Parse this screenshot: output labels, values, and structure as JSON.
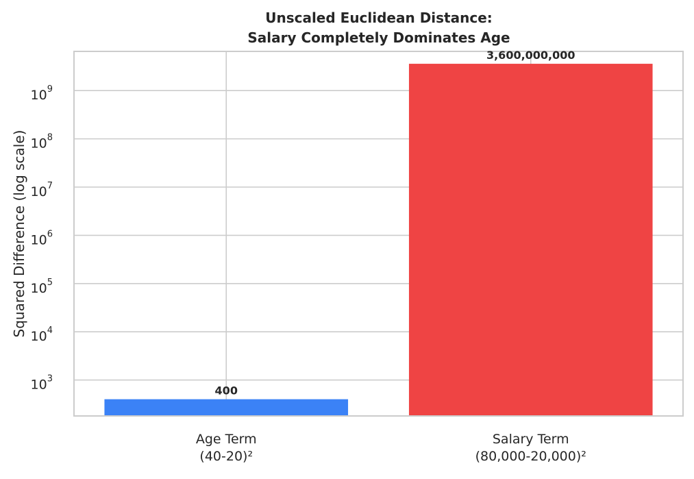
{
  "chart_data": {
    "type": "bar",
    "title": [
      "Unscaled Euclidean Distance:",
      "Salary Completely Dominates Age"
    ],
    "xlabel": "",
    "ylabel": "Squared Difference (log scale)",
    "yscale": "log",
    "ylim": [
      180,
      6500000000
    ],
    "yticks": [
      {
        "base": "10",
        "exp": "3",
        "value": 1000
      },
      {
        "base": "10",
        "exp": "4",
        "value": 10000
      },
      {
        "base": "10",
        "exp": "5",
        "value": 100000
      },
      {
        "base": "10",
        "exp": "6",
        "value": 1000000
      },
      {
        "base": "10",
        "exp": "7",
        "value": 10000000
      },
      {
        "base": "10",
        "exp": "8",
        "value": 100000000
      },
      {
        "base": "10",
        "exp": "9",
        "value": 1000000000
      }
    ],
    "categories": [
      [
        "Age Term",
        "(40-20)²"
      ],
      [
        "Salary Term",
        "(80,000-20,000)²"
      ]
    ],
    "values": [
      400,
      3600000000
    ],
    "data_labels": [
      "400",
      "3,600,000,000"
    ],
    "colors": [
      "#3b82f6",
      "#ef4444"
    ],
    "grid": true,
    "legend": "none"
  }
}
